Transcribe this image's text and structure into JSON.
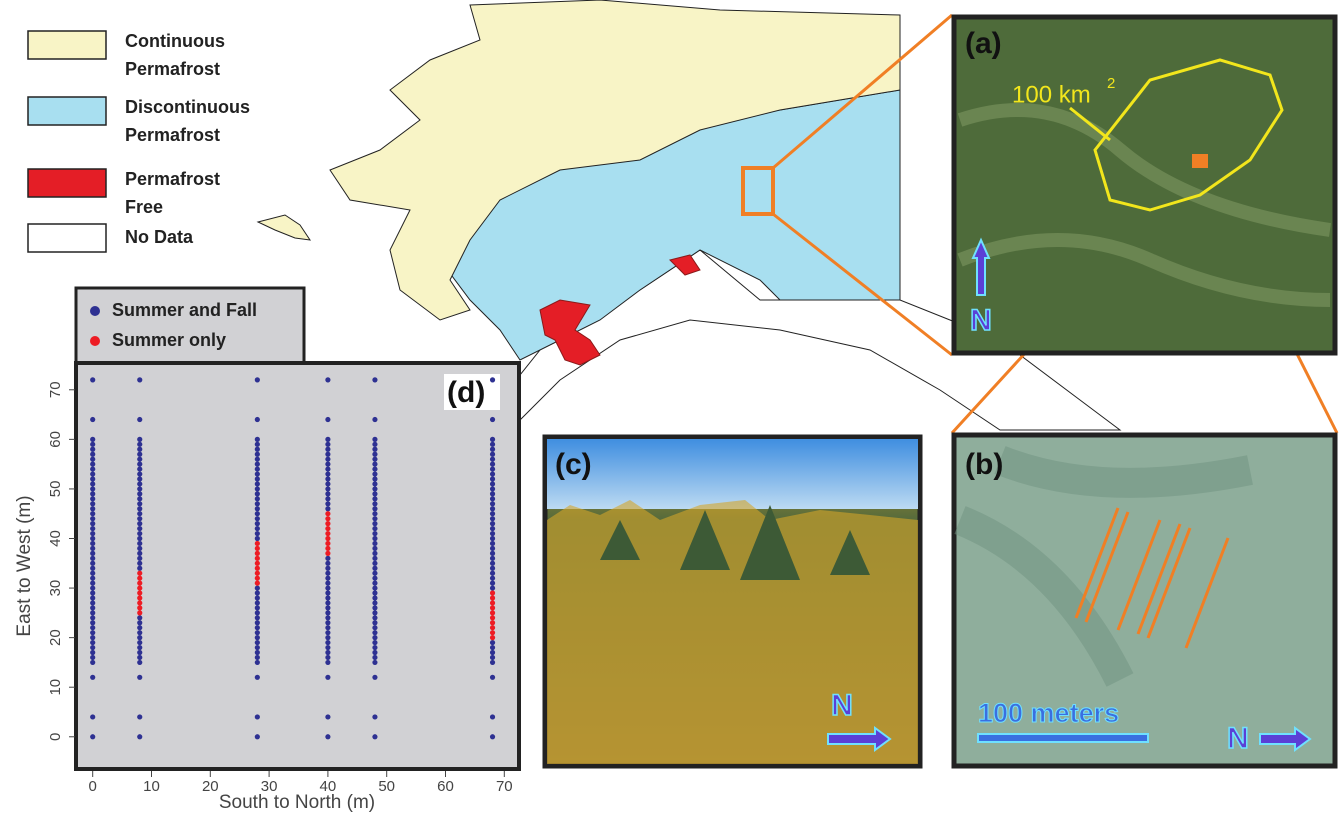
{
  "legend": {
    "items": [
      {
        "label": "Continuous",
        "label2": "Permafrost",
        "color": "#f8f4c6"
      },
      {
        "label": "Discontinuous",
        "label2": "Permafrost",
        "color": "#a8dff0"
      },
      {
        "label": "Permafrost",
        "label2": "Free",
        "color": "#e41e26"
      },
      {
        "label": "No Data",
        "color": "#ffffff"
      }
    ]
  },
  "panels": {
    "a": {
      "label": "(a)",
      "annotation": "100 km",
      "superscript": "2",
      "north": "N"
    },
    "b": {
      "label": "(b)",
      "scale": "100 meters",
      "north": "N"
    },
    "c": {
      "label": "(c)",
      "north": "N"
    }
  },
  "chart_data": {
    "type": "scatter",
    "panel_label": "(d)",
    "x_label": "South to North (m)",
    "y_label": "East to West (m)",
    "xlim": [
      -2.5,
      72.5
    ],
    "ylim": [
      -6.5,
      75
    ],
    "xticks": [
      0,
      10,
      20,
      30,
      40,
      50,
      60,
      70
    ],
    "yticks": [
      0,
      10,
      20,
      30,
      40,
      50,
      60,
      70
    ],
    "series": [
      {
        "name": "Summer and Fall",
        "color": "#2e3192",
        "x": [
          0,
          0,
          0,
          0,
          0,
          0,
          0,
          0,
          0,
          0,
          0,
          0,
          0,
          0,
          0,
          0,
          0,
          0,
          0,
          0,
          0,
          0,
          0,
          0,
          0,
          0,
          0,
          0,
          0,
          0,
          0,
          0,
          0,
          0,
          0,
          0,
          0,
          0,
          0,
          0,
          0,
          0,
          0,
          0,
          0,
          0,
          0,
          0,
          0,
          0,
          0,
          8,
          8,
          8,
          8,
          8,
          8,
          8,
          8,
          8,
          8,
          8,
          8,
          8,
          8,
          8,
          8,
          8,
          8,
          8,
          8,
          8,
          8,
          8,
          8,
          8,
          8,
          8,
          8,
          8,
          8,
          8,
          8,
          8,
          8,
          8,
          8,
          8,
          8,
          8,
          8,
          8,
          8,
          28,
          28,
          28,
          28,
          28,
          28,
          28,
          28,
          28,
          28,
          28,
          28,
          28,
          28,
          28,
          28,
          28,
          28,
          28,
          28,
          28,
          28,
          28,
          28,
          28,
          28,
          28,
          28,
          28,
          28,
          28,
          28,
          28,
          28,
          28,
          28,
          28,
          28,
          28,
          28,
          28,
          28,
          40,
          40,
          40,
          40,
          40,
          40,
          40,
          40,
          40,
          40,
          40,
          40,
          40,
          40,
          40,
          40,
          40,
          40,
          40,
          40,
          40,
          40,
          40,
          40,
          40,
          40,
          40,
          40,
          40,
          40,
          40,
          40,
          40,
          40,
          40,
          40,
          40,
          40,
          40,
          40,
          40,
          40,
          48,
          48,
          48,
          48,
          48,
          48,
          48,
          48,
          48,
          48,
          48,
          48,
          48,
          48,
          48,
          48,
          48,
          48,
          48,
          48,
          48,
          48,
          48,
          48,
          48,
          48,
          48,
          48,
          48,
          48,
          48,
          48,
          48,
          48,
          48,
          48,
          48,
          48,
          48,
          48,
          48,
          48,
          48,
          48,
          48,
          48,
          48,
          48,
          48,
          48,
          48,
          68,
          68,
          68,
          68,
          68,
          68,
          68,
          68,
          68,
          68,
          68,
          68,
          68,
          68,
          68,
          68,
          68,
          68,
          68,
          68,
          68,
          68,
          68,
          68,
          68,
          68,
          68,
          68,
          68,
          68,
          68,
          68,
          68,
          68,
          68,
          68,
          68,
          68,
          68,
          68,
          68
        ],
        "y": [
          0,
          4,
          12,
          15,
          16,
          17,
          18,
          19,
          20,
          21,
          22,
          23,
          24,
          25,
          26,
          27,
          28,
          29,
          30,
          31,
          32,
          33,
          34,
          35,
          36,
          37,
          38,
          39,
          40,
          41,
          42,
          43,
          44,
          45,
          46,
          47,
          48,
          49,
          50,
          51,
          52,
          53,
          54,
          55,
          56,
          57,
          58,
          59,
          60,
          64,
          72,
          0,
          4,
          12,
          15,
          16,
          17,
          18,
          19,
          20,
          21,
          22,
          23,
          24,
          34,
          35,
          36,
          37,
          38,
          39,
          40,
          41,
          42,
          43,
          44,
          45,
          46,
          47,
          48,
          49,
          50,
          51,
          52,
          53,
          54,
          55,
          56,
          57,
          58,
          59,
          60,
          64,
          72,
          0,
          4,
          12,
          15,
          16,
          17,
          18,
          19,
          20,
          21,
          22,
          23,
          24,
          25,
          26,
          27,
          28,
          29,
          30,
          40,
          41,
          42,
          43,
          44,
          45,
          46,
          47,
          48,
          49,
          50,
          51,
          52,
          53,
          54,
          55,
          56,
          57,
          58,
          59,
          60,
          64,
          72,
          0,
          4,
          12,
          15,
          16,
          17,
          18,
          19,
          20,
          21,
          22,
          23,
          24,
          25,
          26,
          27,
          28,
          29,
          30,
          31,
          32,
          33,
          34,
          35,
          36,
          46,
          47,
          48,
          49,
          50,
          51,
          52,
          53,
          54,
          55,
          56,
          57,
          58,
          59,
          60,
          64,
          72,
          0,
          4,
          12,
          15,
          16,
          17,
          18,
          19,
          20,
          21,
          22,
          23,
          24,
          25,
          26,
          27,
          28,
          29,
          30,
          31,
          32,
          33,
          34,
          35,
          36,
          37,
          38,
          39,
          40,
          41,
          42,
          43,
          44,
          45,
          46,
          47,
          48,
          49,
          50,
          51,
          52,
          53,
          54,
          55,
          56,
          57,
          58,
          59,
          60,
          64,
          72,
          0,
          4,
          12,
          15,
          16,
          17,
          18,
          19,
          30,
          31,
          32,
          33,
          34,
          35,
          36,
          37,
          38,
          39,
          40,
          41,
          42,
          43,
          44,
          45,
          46,
          47,
          48,
          49,
          50,
          51,
          52,
          53,
          54,
          55,
          56,
          57,
          58,
          59,
          60,
          64,
          72
        ]
      },
      {
        "name": "Summer only",
        "color": "#ed1c24",
        "x": [
          8,
          8,
          8,
          8,
          8,
          8,
          8,
          8,
          8,
          28,
          28,
          28,
          28,
          28,
          28,
          28,
          28,
          28,
          40,
          40,
          40,
          40,
          40,
          40,
          40,
          40,
          40,
          68,
          68,
          68,
          68,
          68,
          68,
          68,
          68,
          68,
          68
        ],
        "y": [
          25,
          26,
          27,
          28,
          29,
          30,
          31,
          32,
          33,
          31,
          32,
          33,
          34,
          35,
          36,
          37,
          38,
          39,
          37,
          38,
          39,
          40,
          41,
          42,
          43,
          44,
          45,
          20,
          21,
          22,
          23,
          24,
          25,
          26,
          27,
          28,
          29
        ]
      }
    ]
  }
}
